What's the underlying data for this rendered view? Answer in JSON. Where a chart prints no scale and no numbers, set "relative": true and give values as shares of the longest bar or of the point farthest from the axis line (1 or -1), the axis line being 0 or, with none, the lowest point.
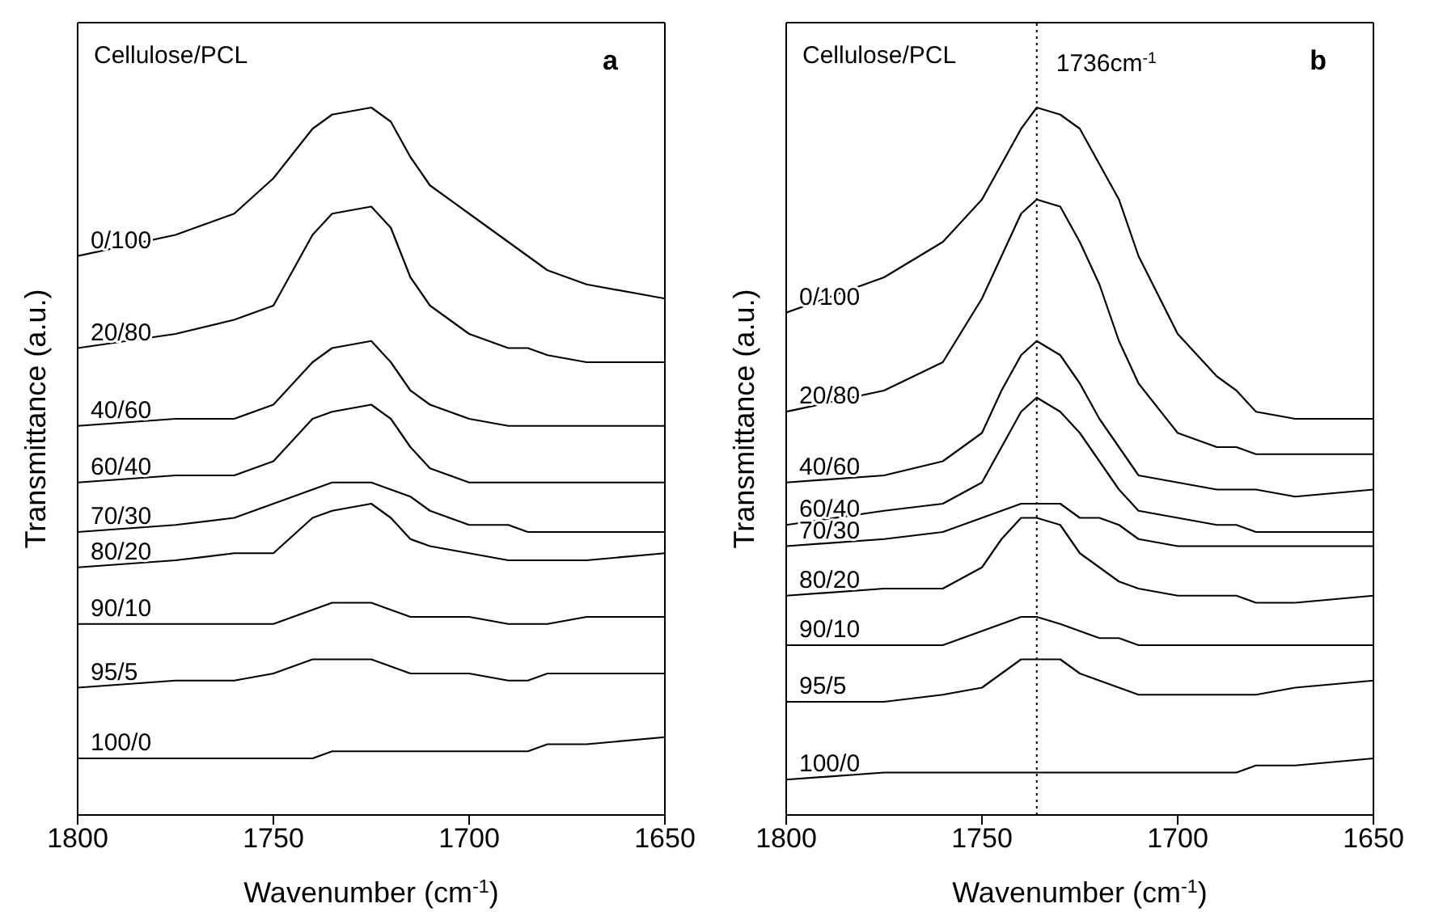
{
  "chart_data": [
    {
      "type": "line",
      "relative": true,
      "xlabel": "Wavenumber (cm$^{-1}$)",
      "ylabel": "Transmittance (a.u.)",
      "annotations": [
        "Cellulose/PCL",
        "a"
      ],
      "xlim": [
        1800,
        1650
      ],
      "xticks": [
        1800,
        1750,
        1700,
        1650
      ],
      "x": [
        1800,
        1775,
        1760,
        1750,
        1740,
        1735,
        1725,
        1720,
        1715,
        1710,
        1700,
        1690,
        1685,
        1680,
        1670,
        1650
      ],
      "series": [
        {
          "name": "0/100",
          "color": "#000000",
          "values": [
            0.79,
            0.82,
            0.85,
            0.9,
            0.97,
            0.99,
            1,
            0.98,
            0.93,
            0.89,
            0.85,
            0.81,
            0.79,
            0.77,
            0.75,
            0.73
          ]
        },
        {
          "name": "20/80",
          "color": "#000000",
          "values": [
            0.66,
            0.68,
            0.7,
            0.72,
            0.82,
            0.85,
            0.86,
            0.83,
            0.76,
            0.72,
            0.68,
            0.66,
            0.66,
            0.65,
            0.64,
            0.64
          ]
        },
        {
          "name": "40/60",
          "color": "#000000",
          "values": [
            0.55,
            0.56,
            0.56,
            0.58,
            0.64,
            0.66,
            0.67,
            0.64,
            0.6,
            0.58,
            0.56,
            0.55,
            0.55,
            0.55,
            0.55,
            0.55
          ]
        },
        {
          "name": "60/40",
          "color": "#000000",
          "values": [
            0.47,
            0.48,
            0.48,
            0.5,
            0.56,
            0.57,
            0.58,
            0.56,
            0.52,
            0.49,
            0.47,
            0.47,
            0.47,
            0.47,
            0.47,
            0.47
          ]
        },
        {
          "name": "70/30",
          "color": "#000000",
          "values": [
            0.4,
            0.41,
            0.42,
            0.44,
            0.46,
            0.47,
            0.47,
            0.46,
            0.45,
            0.43,
            0.41,
            0.41,
            0.4,
            0.4,
            0.4,
            0.4
          ]
        },
        {
          "name": "80/20",
          "color": "#000000",
          "values": [
            0.35,
            0.36,
            0.37,
            0.37,
            0.42,
            0.43,
            0.44,
            0.42,
            0.39,
            0.38,
            0.37,
            0.36,
            0.36,
            0.36,
            0.36,
            0.37
          ]
        },
        {
          "name": "90/10",
          "color": "#000000",
          "values": [
            0.27,
            0.27,
            0.27,
            0.27,
            0.29,
            0.3,
            0.3,
            0.29,
            0.28,
            0.28,
            0.28,
            0.27,
            0.27,
            0.27,
            0.28,
            0.28
          ]
        },
        {
          "name": "95/5",
          "color": "#000000",
          "values": [
            0.18,
            0.19,
            0.19,
            0.2,
            0.22,
            0.22,
            0.22,
            0.21,
            0.2,
            0.2,
            0.2,
            0.19,
            0.19,
            0.2,
            0.2,
            0.2
          ]
        },
        {
          "name": "100/0",
          "color": "#000000",
          "values": [
            0.08,
            0.08,
            0.08,
            0.08,
            0.08,
            0.09,
            0.09,
            0.09,
            0.09,
            0.09,
            0.09,
            0.09,
            0.09,
            0.1,
            0.1,
            0.11
          ]
        }
      ]
    },
    {
      "type": "line",
      "relative": true,
      "xlabel": "Wavenumber (cm$^{-1}$)",
      "ylabel": "Transmittance (a.u.)",
      "annotations": [
        "Cellulose/PCL",
        "b"
      ],
      "xlim": [
        1800,
        1650
      ],
      "xticks": [
        1800,
        1750,
        1700,
        1650
      ],
      "ref_lines": [
        {
          "axis": "x",
          "value": 1736,
          "label": "1736cm$^{-1}$",
          "line_style": "dotted",
          "color": "#000000"
        }
      ],
      "x": [
        1800,
        1775,
        1760,
        1750,
        1745,
        1740,
        1736,
        1730,
        1725,
        1720,
        1715,
        1710,
        1700,
        1690,
        1685,
        1680,
        1670,
        1650
      ],
      "series": [
        {
          "name": "0/100",
          "color": "#000000",
          "values": [
            0.71,
            0.76,
            0.81,
            0.87,
            0.92,
            0.97,
            1,
            0.99,
            0.97,
            0.92,
            0.87,
            0.79,
            0.68,
            0.62,
            0.6,
            0.57,
            0.56,
            0.56
          ]
        },
        {
          "name": "20/80",
          "color": "#000000",
          "values": [
            0.57,
            0.6,
            0.64,
            0.73,
            0.79,
            0.85,
            0.87,
            0.86,
            0.81,
            0.75,
            0.67,
            0.61,
            0.54,
            0.52,
            0.52,
            0.51,
            0.51,
            0.51
          ]
        },
        {
          "name": "40/60",
          "color": "#000000",
          "values": [
            0.47,
            0.48,
            0.5,
            0.54,
            0.6,
            0.65,
            0.67,
            0.65,
            0.61,
            0.56,
            0.52,
            0.48,
            0.47,
            0.46,
            0.46,
            0.46,
            0.45,
            0.46
          ]
        },
        {
          "name": "60/40",
          "color": "#000000",
          "values": [
            0.41,
            0.43,
            0.44,
            0.47,
            0.52,
            0.57,
            0.59,
            0.57,
            0.54,
            0.5,
            0.46,
            0.43,
            0.42,
            0.41,
            0.41,
            0.4,
            0.4,
            0.4
          ]
        },
        {
          "name": "70/30",
          "color": "#000000",
          "values": [
            0.38,
            0.39,
            0.4,
            0.42,
            0.43,
            0.44,
            0.44,
            0.44,
            0.42,
            0.42,
            0.41,
            0.39,
            0.38,
            0.38,
            0.38,
            0.38,
            0.38,
            0.38
          ]
        },
        {
          "name": "80/20",
          "color": "#000000",
          "values": [
            0.31,
            0.32,
            0.32,
            0.35,
            0.39,
            0.42,
            0.42,
            0.41,
            0.37,
            0.35,
            0.33,
            0.32,
            0.31,
            0.31,
            0.31,
            0.3,
            0.3,
            0.31
          ]
        },
        {
          "name": "90/10",
          "color": "#000000",
          "values": [
            0.24,
            0.24,
            0.24,
            0.26,
            0.27,
            0.28,
            0.28,
            0.27,
            0.26,
            0.25,
            0.25,
            0.24,
            0.24,
            0.24,
            0.24,
            0.24,
            0.24,
            0.24
          ]
        },
        {
          "name": "95/5",
          "color": "#000000",
          "values": [
            0.16,
            0.16,
            0.17,
            0.18,
            0.2,
            0.22,
            0.22,
            0.22,
            0.2,
            0.19,
            0.18,
            0.17,
            0.17,
            0.17,
            0.17,
            0.17,
            0.18,
            0.19
          ]
        },
        {
          "name": "100/0",
          "color": "#000000",
          "values": [
            0.05,
            0.06,
            0.06,
            0.06,
            0.06,
            0.06,
            0.06,
            0.06,
            0.06,
            0.06,
            0.06,
            0.06,
            0.06,
            0.06,
            0.06,
            0.07,
            0.07,
            0.08
          ]
        }
      ]
    }
  ]
}
